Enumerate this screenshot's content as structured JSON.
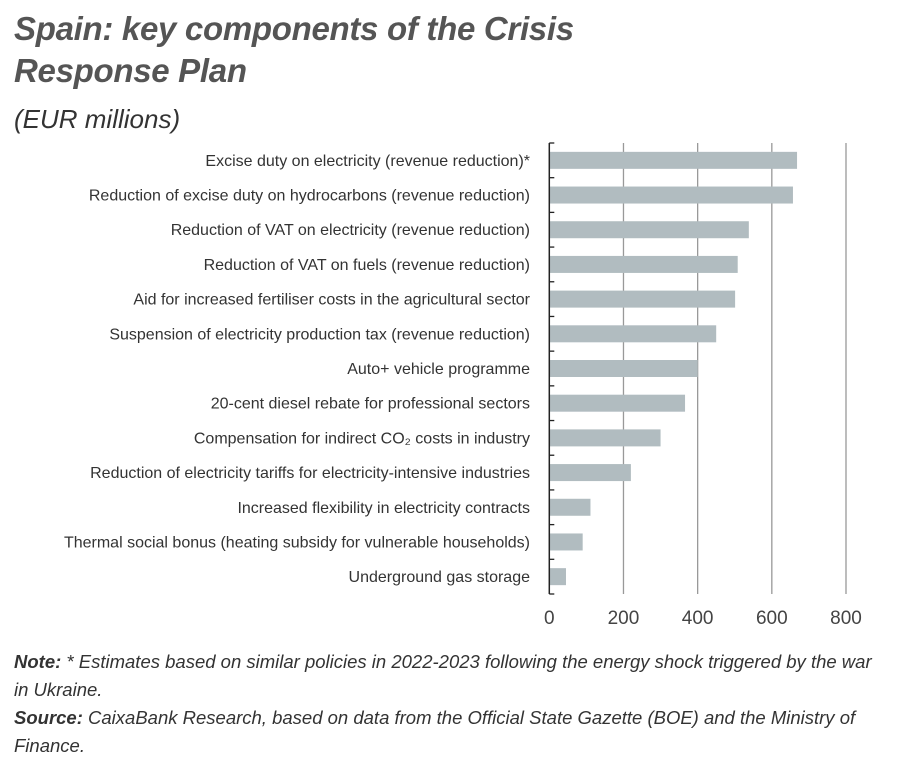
{
  "chart_data": {
    "type": "bar",
    "orientation": "horizontal",
    "title": "Spain: key components of the Crisis Response Plan",
    "subtitle": "(EUR millions)",
    "categories": [
      "Excise duty on electricity (revenue reduction)*",
      "Reduction of excise duty on hydrocarbons (revenue reduction)",
      "Reduction of VAT on electricity (revenue reduction)",
      "Reduction of VAT on fuels (revenue reduction)",
      "Aid for increased fertiliser costs in the agricultural sector",
      "Suspension of electricity production tax (revenue reduction)",
      "Auto+ vehicle programme",
      "20-cent diesel rebate for professional sectors",
      "Compensation for indirect CO₂ costs in industry",
      "Reduction of electricity tariffs for electricity-intensive industries",
      "Increased flexibility in electricity contracts",
      "Thermal social bonus (heating subsidy for vulnerable households)",
      "Underground gas storage"
    ],
    "values": [
      668,
      657,
      538,
      508,
      501,
      450,
      400,
      366,
      300,
      220,
      111,
      90,
      45
    ],
    "xlim": [
      0,
      800
    ],
    "xticks": [
      "0",
      "200",
      "400",
      "600",
      "800"
    ],
    "grid": true,
    "bar_color": "#b1bcc0",
    "xlabel": "",
    "ylabel": ""
  },
  "note": {
    "label": "Note:",
    "text": " * Estimates based on similar policies in 2022-2023 following the energy shock triggered by the war in Ukraine."
  },
  "source": {
    "label": "Source:",
    "text": " CaixaBank Research, based on data from the Official State Gazette (BOE) and the Ministry of Finance."
  }
}
